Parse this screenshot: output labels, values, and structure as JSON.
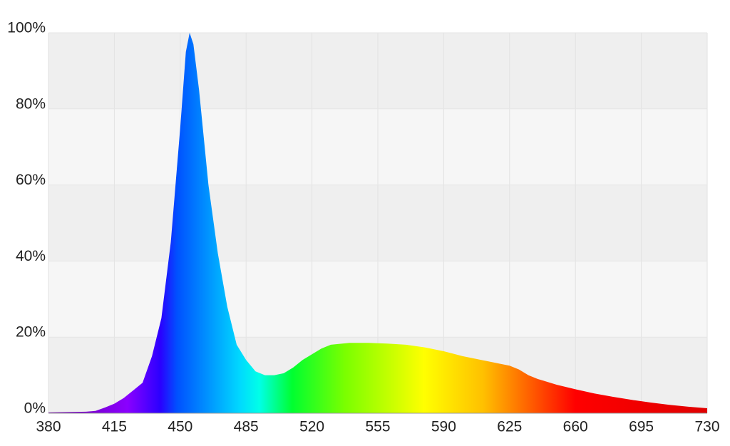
{
  "chart_data": {
    "type": "area",
    "x": [
      380,
      390,
      400,
      405,
      410,
      415,
      420,
      425,
      430,
      435,
      440,
      445,
      450,
      453,
      455,
      457,
      460,
      465,
      470,
      475,
      480,
      485,
      490,
      495,
      500,
      505,
      510,
      515,
      520,
      525,
      530,
      540,
      550,
      560,
      570,
      580,
      590,
      600,
      610,
      620,
      625,
      630,
      635,
      640,
      650,
      660,
      670,
      680,
      690,
      700,
      710,
      720,
      730
    ],
    "values": [
      0.2,
      0.3,
      0.4,
      0.6,
      1.5,
      2.5,
      4,
      6,
      8,
      15,
      25,
      45,
      75,
      95,
      100,
      97,
      85,
      60,
      42,
      28,
      18,
      14,
      11,
      10,
      10,
      10.5,
      12,
      14,
      15.5,
      17,
      18,
      18.5,
      18.5,
      18.3,
      18,
      17.3,
      16.3,
      15,
      14,
      13,
      12.5,
      11.5,
      10,
      9,
      7.5,
      6.3,
      5.2,
      4.3,
      3.5,
      2.8,
      2.2,
      1.7,
      1.3
    ],
    "xlim": [
      380,
      730
    ],
    "xticks": [
      380,
      415,
      450,
      485,
      520,
      555,
      590,
      625,
      660,
      695,
      730
    ],
    "ylim": [
      0,
      100
    ],
    "yticks": [
      {
        "value": 0,
        "label": "0%"
      },
      {
        "value": 20,
        "label": "20%"
      },
      {
        "value": 40,
        "label": "40%"
      },
      {
        "value": 60,
        "label": "60%"
      },
      {
        "value": 80,
        "label": "80%"
      },
      {
        "value": 100,
        "label": "100%"
      }
    ],
    "grid": true
  }
}
